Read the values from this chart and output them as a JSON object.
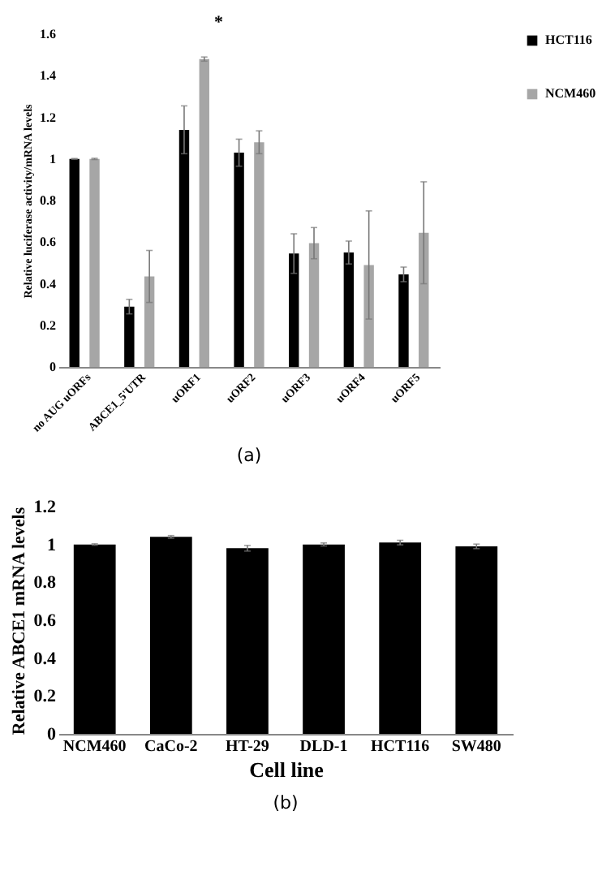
{
  "chart_data": [
    {
      "type": "bar",
      "ylabel": "Relative luciferase activity/mRNA levels",
      "categories": [
        "no AUG uORFs",
        "ABCE1_5'UTR",
        "uORF1",
        "uORF2",
        "uORF3",
        "uORF4",
        "uORF5"
      ],
      "series": [
        {
          "name": "HCT116",
          "color": "#000000",
          "values": [
            1.0,
            0.29,
            1.14,
            1.03,
            0.545,
            0.55,
            0.445
          ],
          "errors": [
            0.002,
            0.035,
            0.115,
            0.065,
            0.095,
            0.055,
            0.035
          ]
        },
        {
          "name": "NCM460",
          "color": "#a6a6a6",
          "values": [
            1.0,
            0.435,
            1.48,
            1.08,
            0.595,
            0.49,
            0.645
          ],
          "errors": [
            0.003,
            0.125,
            0.01,
            0.055,
            0.075,
            0.26,
            0.245
          ]
        }
      ],
      "ylim": [
        0,
        1.6
      ],
      "yticks": [
        0,
        0.2,
        0.4,
        0.6,
        0.8,
        1,
        1.2,
        1.4,
        1.6
      ],
      "legend": "top right",
      "annotations": [
        "*",
        "(a)"
      ]
    },
    {
      "type": "bar",
      "ylabel": "Relative ABCE1 mRNA levels",
      "xlabel": "Cell line",
      "categories": [
        "NCM460",
        "CaCo-2",
        "HT-29",
        "DLD-1",
        "HCT116",
        "SW480"
      ],
      "series": [
        {
          "color": "#000000",
          "values": [
            1.0,
            1.04,
            0.98,
            1.0,
            1.01,
            0.99
          ],
          "errors": [
            0.004,
            0.007,
            0.015,
            0.008,
            0.012,
            0.012
          ]
        }
      ],
      "ylim": [
        0,
        1.2
      ],
      "yticks": [
        0,
        0.2,
        0.4,
        0.6,
        0.8,
        1,
        1.2
      ],
      "annotations": [
        "(b)"
      ]
    }
  ]
}
